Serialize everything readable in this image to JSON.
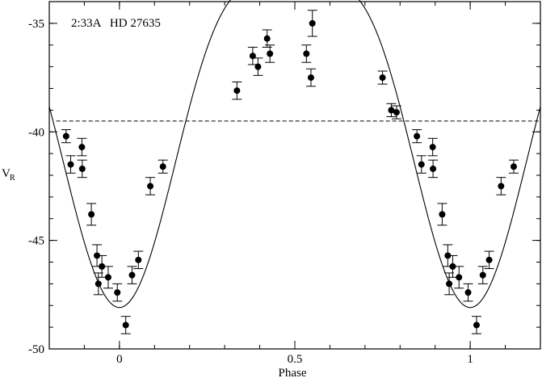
{
  "chart_data": {
    "type": "scatter",
    "annotation": "2:33A   HD 27635",
    "xlabel": "Phase",
    "ylabel": "V",
    "ylabel_sub": "R",
    "xlim": [
      -0.2,
      1.2
    ],
    "ylim": [
      -50,
      -34
    ],
    "y_inverted": true,
    "x_ticks": [
      {
        "value": 0,
        "label": "0"
      },
      {
        "value": 0.5,
        "label": "0.5"
      },
      {
        "value": 1,
        "label": "1"
      }
    ],
    "y_ticks": [
      {
        "value": -35,
        "label": "-35"
      },
      {
        "value": -40,
        "label": "-40"
      },
      {
        "value": -45,
        "label": "-45"
      },
      {
        "value": -50,
        "label": "-50"
      }
    ],
    "x_minor_step": 0.1,
    "y_minor_step": 1,
    "gamma_velocity": -39.5,
    "curve": {
      "gamma": -38.45,
      "half_amplitude": 9.9,
      "min_phase": 1.0
    },
    "points": [
      {
        "x": -0.152,
        "y": -40.2,
        "err": 0.3
      },
      {
        "x": -0.139,
        "y": -41.5,
        "err": 0.4
      },
      {
        "x": -0.107,
        "y": -40.7,
        "err": 0.4
      },
      {
        "x": -0.106,
        "y": -41.7,
        "err": 0.4
      },
      {
        "x": -0.08,
        "y": -43.8,
        "err": 0.5
      },
      {
        "x": -0.064,
        "y": -45.7,
        "err": 0.5
      },
      {
        "x": -0.06,
        "y": -47.0,
        "err": 0.5
      },
      {
        "x": -0.05,
        "y": -46.2,
        "err": 0.5
      },
      {
        "x": -0.032,
        "y": -46.7,
        "err": 0.5
      },
      {
        "x": -0.006,
        "y": -47.4,
        "err": 0.4
      },
      {
        "x": 0.018,
        "y": -48.9,
        "err": 0.4
      },
      {
        "x": 0.036,
        "y": -46.6,
        "err": 0.4
      },
      {
        "x": 0.054,
        "y": -45.9,
        "err": 0.4
      },
      {
        "x": 0.088,
        "y": -42.5,
        "err": 0.4
      },
      {
        "x": 0.124,
        "y": -41.6,
        "err": 0.3
      },
      {
        "x": 0.335,
        "y": -38.1,
        "err": 0.4
      },
      {
        "x": 0.38,
        "y": -36.5,
        "err": 0.4
      },
      {
        "x": 0.395,
        "y": -37.0,
        "err": 0.4
      },
      {
        "x": 0.421,
        "y": -35.7,
        "err": 0.4
      },
      {
        "x": 0.429,
        "y": -36.4,
        "err": 0.4
      },
      {
        "x": 0.533,
        "y": -36.4,
        "err": 0.4
      },
      {
        "x": 0.546,
        "y": -37.5,
        "err": 0.4
      },
      {
        "x": 0.55,
        "y": -35.0,
        "err": 0.6
      },
      {
        "x": 0.75,
        "y": -37.5,
        "err": 0.3
      },
      {
        "x": 0.775,
        "y": -39.0,
        "err": 0.3
      },
      {
        "x": 0.79,
        "y": -39.1,
        "err": 0.3
      },
      {
        "x": 0.848,
        "y": -40.2,
        "err": 0.3
      },
      {
        "x": 0.861,
        "y": -41.5,
        "err": 0.4
      },
      {
        "x": 0.893,
        "y": -40.7,
        "err": 0.4
      },
      {
        "x": 0.894,
        "y": -41.7,
        "err": 0.4
      },
      {
        "x": 0.92,
        "y": -43.8,
        "err": 0.5
      },
      {
        "x": 0.936,
        "y": -45.7,
        "err": 0.5
      },
      {
        "x": 0.94,
        "y": -47.0,
        "err": 0.5
      },
      {
        "x": 0.95,
        "y": -46.2,
        "err": 0.5
      },
      {
        "x": 0.968,
        "y": -46.7,
        "err": 0.5
      },
      {
        "x": 0.994,
        "y": -47.4,
        "err": 0.4
      },
      {
        "x": 1.018,
        "y": -48.9,
        "err": 0.4
      },
      {
        "x": 1.036,
        "y": -46.6,
        "err": 0.4
      },
      {
        "x": 1.054,
        "y": -45.9,
        "err": 0.4
      },
      {
        "x": 1.088,
        "y": -42.5,
        "err": 0.4
      },
      {
        "x": 1.124,
        "y": -41.6,
        "err": 0.3
      }
    ]
  }
}
